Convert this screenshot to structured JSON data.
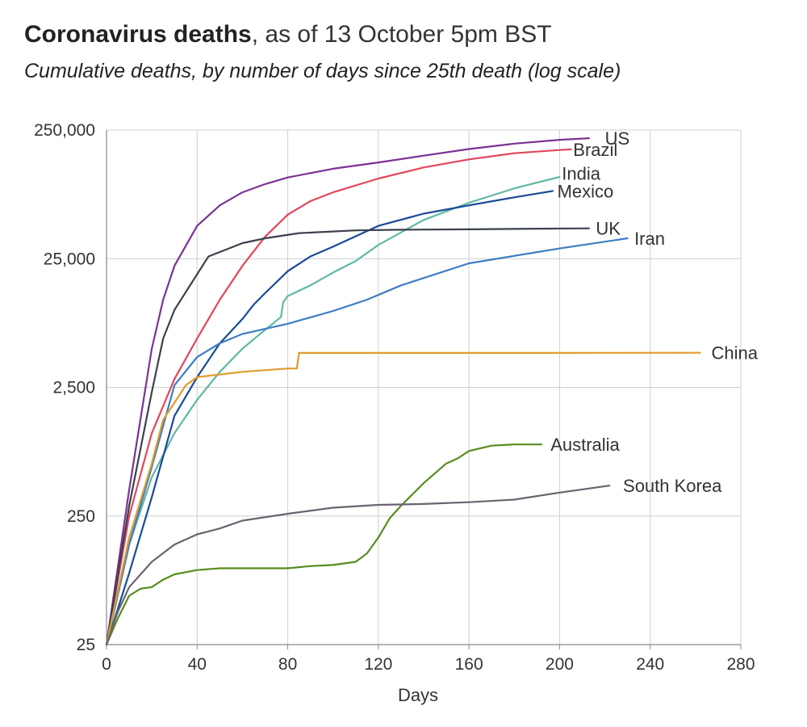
{
  "header": {
    "title_bold": "Coronavirus deaths",
    "title_rest": ", as of 13 October 5pm BST",
    "subtitle": "Cumulative deaths, by number of days since 25th death (log scale)"
  },
  "chart_data": {
    "type": "line",
    "title": "Coronavirus deaths, as of 13 October 5pm BST",
    "subtitle": "Cumulative deaths, by number of days since 25th death (log scale)",
    "xlabel": "Days",
    "ylabel": "",
    "xlim": [
      0,
      280
    ],
    "ylim": [
      25,
      250000
    ],
    "yscale": "log",
    "x_ticks": [
      0,
      40,
      80,
      120,
      160,
      200,
      240,
      280
    ],
    "x_tick_labels": [
      "0",
      "40",
      "80",
      "120",
      "160",
      "200",
      "240",
      "280"
    ],
    "y_ticks": [
      25,
      250,
      2500,
      25000,
      250000
    ],
    "y_tick_labels": [
      "25",
      "250",
      "2,500",
      "25,000",
      "250,000"
    ],
    "grid": true,
    "series": [
      {
        "name": "US",
        "color": "#7b3294",
        "x": [
          0,
          10,
          20,
          25,
          30,
          40,
          50,
          60,
          70,
          80,
          100,
          120,
          140,
          160,
          180,
          200,
          213
        ],
        "y": [
          25,
          400,
          5000,
          12000,
          22000,
          45000,
          65000,
          82000,
          95000,
          107000,
          125000,
          140000,
          158000,
          178000,
          196000,
          210000,
          216000
        ]
      },
      {
        "name": "Brazil",
        "color": "#e0475d",
        "x": [
          0,
          10,
          20,
          30,
          40,
          50,
          60,
          70,
          80,
          90,
          100,
          120,
          140,
          160,
          180,
          200,
          205
        ],
        "y": [
          25,
          250,
          1100,
          2900,
          6000,
          12000,
          22000,
          37000,
          55000,
          70000,
          82000,
          105000,
          128000,
          148000,
          165000,
          175000,
          177000
        ]
      },
      {
        "name": "India",
        "color": "#5fb8a5",
        "x": [
          0,
          10,
          20,
          30,
          40,
          50,
          60,
          70,
          77,
          78,
          80,
          90,
          100,
          110,
          120,
          140,
          160,
          180,
          200
        ],
        "y": [
          25,
          150,
          500,
          1100,
          2000,
          3300,
          5000,
          7000,
          8800,
          11500,
          12800,
          15500,
          19500,
          24000,
          32000,
          50000,
          68000,
          88000,
          108000
        ]
      },
      {
        "name": "Mexico",
        "color": "#1a4a96",
        "x": [
          0,
          10,
          20,
          30,
          40,
          50,
          60,
          65,
          70,
          80,
          90,
          100,
          120,
          140,
          160,
          180,
          197
        ],
        "y": [
          25,
          90,
          350,
          1500,
          3000,
          5500,
          8500,
          11000,
          13500,
          20000,
          26000,
          31000,
          45000,
          56000,
          65000,
          75000,
          84000
        ]
      },
      {
        "name": "UK",
        "color": "#3a414d",
        "x": [
          0,
          10,
          20,
          25,
          30,
          45,
          60,
          70,
          85,
          110,
          130,
          160,
          190,
          213
        ],
        "y": [
          25,
          300,
          2300,
          6000,
          10000,
          26000,
          33000,
          36000,
          39500,
          41500,
          42000,
          42300,
          42800,
          43000
        ]
      },
      {
        "name": "Iran",
        "color": "#3d7dc2",
        "x": [
          0,
          10,
          20,
          30,
          40,
          50,
          60,
          80,
          100,
          115,
          130,
          160,
          200,
          230
        ],
        "y": [
          25,
          150,
          600,
          2600,
          4300,
          5500,
          6500,
          7800,
          9800,
          12000,
          15500,
          23000,
          30000,
          36000
        ]
      },
      {
        "name": "China",
        "color": "#e09c2c",
        "x": [
          0,
          10,
          20,
          25,
          30,
          35,
          40,
          60,
          80,
          84,
          85,
          100,
          150,
          200,
          262
        ],
        "y": [
          25,
          170,
          640,
          1400,
          1900,
          2600,
          3000,
          3300,
          3500,
          3500,
          4630,
          4630,
          4630,
          4630,
          4640
        ]
      },
      {
        "name": "Australia",
        "color": "#578c1f",
        "x": [
          0,
          5,
          10,
          15,
          20,
          25,
          30,
          40,
          50,
          60,
          70,
          80,
          90,
          100,
          110,
          115,
          120,
          125,
          130,
          140,
          150,
          155,
          160,
          170,
          180,
          192
        ],
        "y": [
          25,
          40,
          60,
          68,
          70,
          80,
          88,
          95,
          98,
          98,
          98,
          98,
          102,
          104,
          110,
          128,
          170,
          240,
          300,
          450,
          640,
          700,
          800,
          880,
          900,
          900
        ]
      },
      {
        "name": "South Korea",
        "color": "#6b6370",
        "x": [
          0,
          5,
          10,
          20,
          30,
          40,
          50,
          60,
          80,
          100,
          120,
          140,
          160,
          180,
          200,
          222
        ],
        "y": [
          25,
          45,
          70,
          110,
          150,
          180,
          200,
          230,
          260,
          290,
          305,
          310,
          320,
          335,
          380,
          430
        ]
      }
    ],
    "labels": [
      {
        "series": "US",
        "text": "US",
        "value_x": 220,
        "value_y": 216000
      },
      {
        "series": "Brazil",
        "text": "Brazil",
        "value_x": 206,
        "value_y": 177000
      },
      {
        "series": "India",
        "text": "India",
        "value_x": 201,
        "value_y": 115000
      },
      {
        "series": "Mexico",
        "text": "Mexico",
        "value_x": 199,
        "value_y": 84000
      },
      {
        "series": "UK",
        "text": "UK",
        "value_x": 216,
        "value_y": 43000
      },
      {
        "series": "Iran",
        "text": "Iran",
        "value_x": 233,
        "value_y": 36000
      },
      {
        "series": "China",
        "text": "China",
        "value_x": 267,
        "value_y": 4640
      },
      {
        "series": "Australia",
        "text": "Australia",
        "value_x": 196,
        "value_y": 900
      },
      {
        "series": "South Korea",
        "text": "South Korea",
        "value_x": 228,
        "value_y": 430
      }
    ]
  }
}
